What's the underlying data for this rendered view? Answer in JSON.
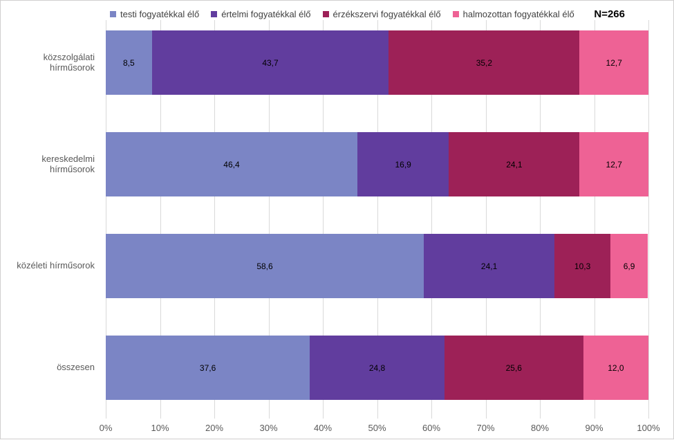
{
  "chart_data": {
    "type": "bar",
    "variant": "horizontal-stacked",
    "title": "",
    "n_label": "N=266",
    "legend_position": "top",
    "grid": "vertical",
    "xlim": [
      0,
      100
    ],
    "x_ticks": [
      "0%",
      "10%",
      "20%",
      "30%",
      "40%",
      "50%",
      "60%",
      "70%",
      "80%",
      "90%",
      "100%"
    ],
    "categories": [
      "közszolgálati hírműsorok",
      "kereskedelmi hírműsorok",
      "közéleti hírműsorok",
      "összesen"
    ],
    "series": [
      {
        "name": "testi fogyatékkal élő",
        "color": "#7B85C5",
        "values": [
          8.5,
          46.4,
          58.6,
          37.6
        ]
      },
      {
        "name": "értelmi fogyatékkal élő",
        "color": "#613D9E",
        "values": [
          43.7,
          16.9,
          24.1,
          24.8
        ]
      },
      {
        "name": "érzékszervi fogyatékkal élő",
        "color": "#9D2157",
        "values": [
          35.2,
          24.1,
          10.3,
          25.6
        ]
      },
      {
        "name": "halmozottan fogyatékkal élő",
        "color": "#EE6295",
        "values": [
          12.7,
          12.7,
          6.9,
          12.0
        ]
      }
    ],
    "value_labels": [
      [
        "8,5",
        "43,7",
        "35,2",
        "12,7"
      ],
      [
        "46,4",
        "16,9",
        "24,1",
        "12,7"
      ],
      [
        "58,6",
        "24,1",
        "10,3",
        "6,9"
      ],
      [
        "37,6",
        "24,8",
        "25,6",
        "12,0"
      ]
    ]
  },
  "layout_colors": {
    "gridline": "#d9d9d9",
    "border": "#d0cece",
    "category_text": "#595959",
    "axis_text": "#595959",
    "legend_text": "#404040",
    "value_text": "#000000"
  }
}
